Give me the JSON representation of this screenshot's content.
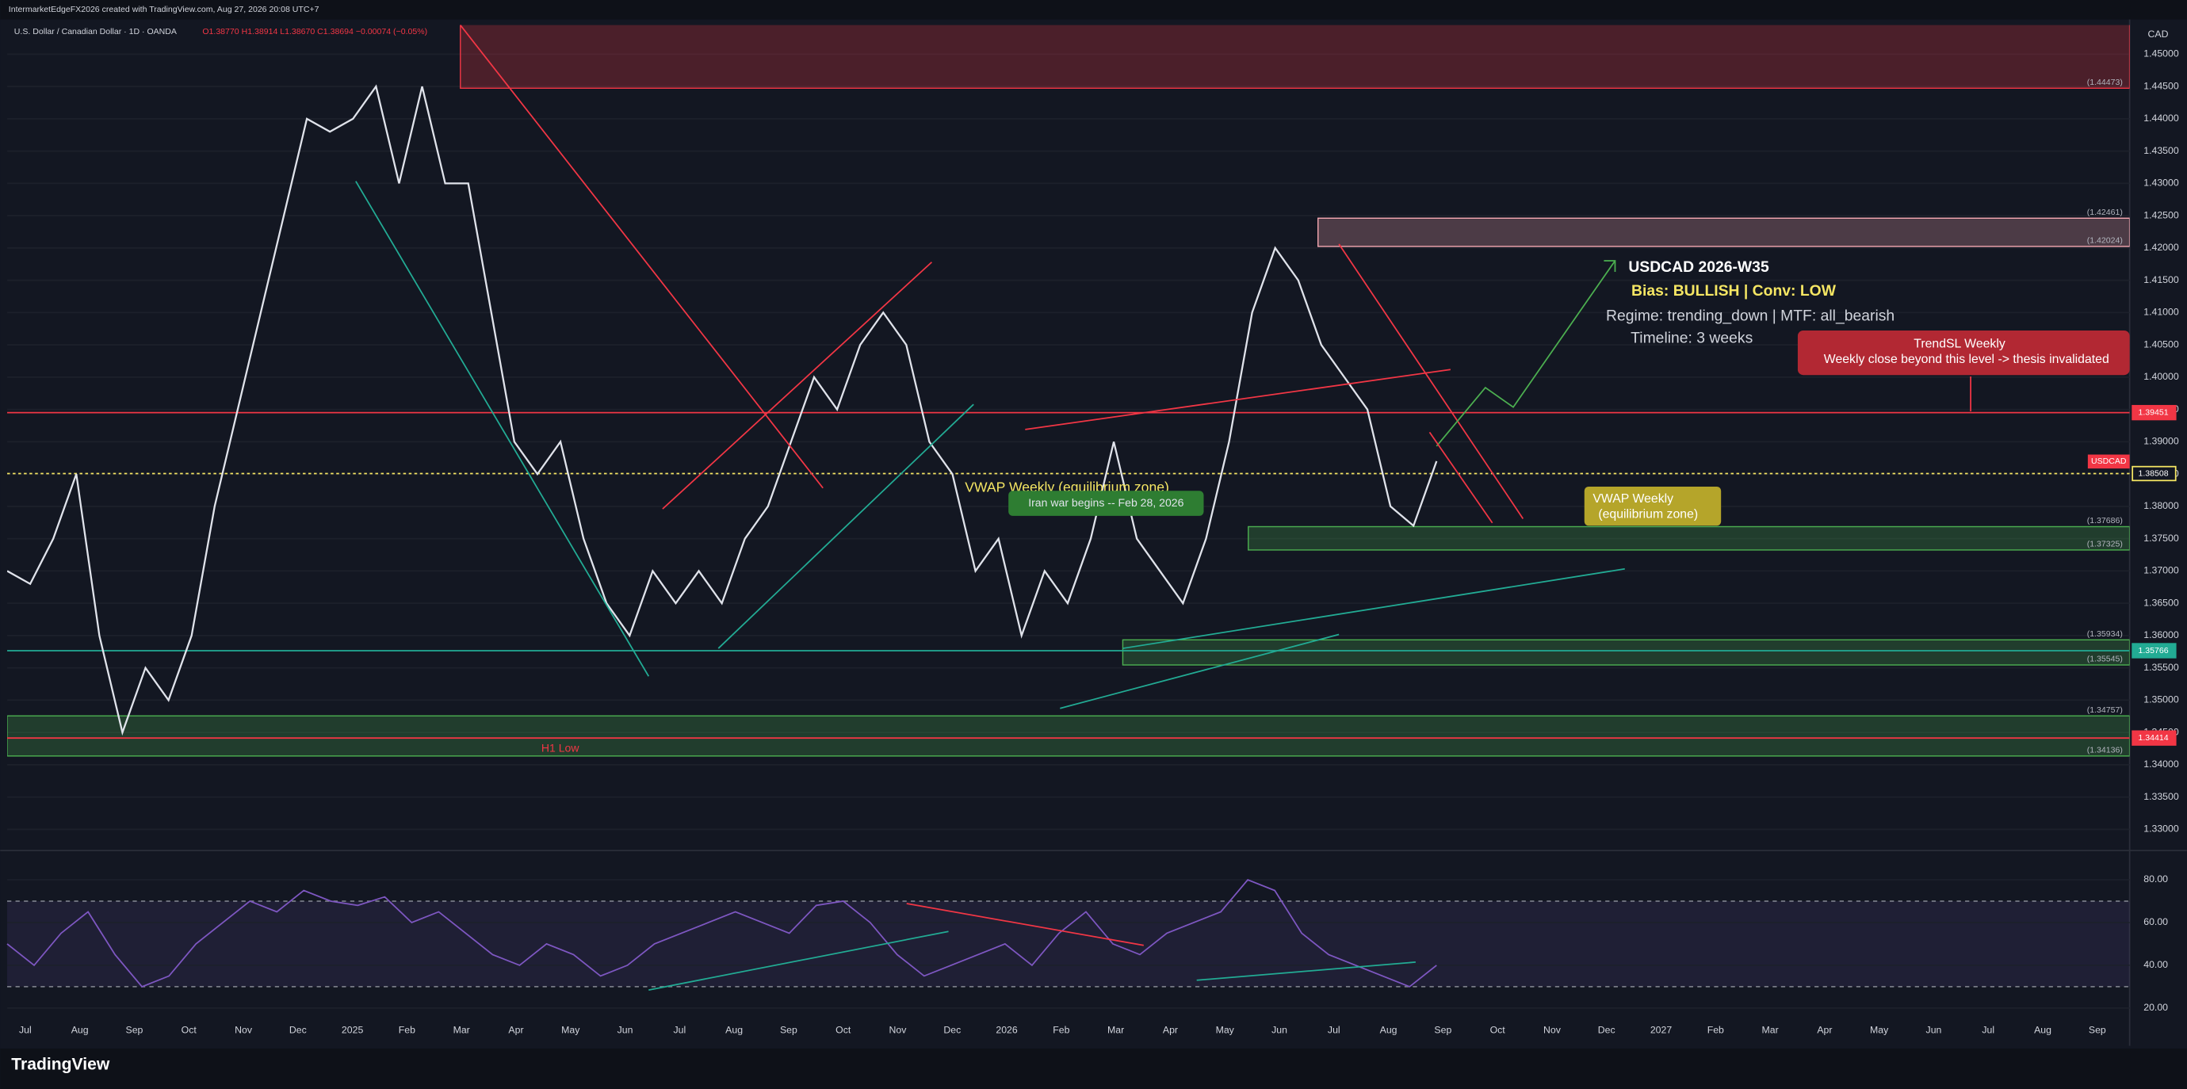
{
  "header": {
    "attribution": "IntermarketEdgeFX2026 created with TradingView.com, Aug 27, 2026 20:08 UTC+7",
    "symbol": "U.S. Dollar / Canadian Dollar · 1D · OANDA",
    "ohlc": "O1.38770 H1.38914 L1.38670 C1.38694 −0.00074 (−0.05%)"
  },
  "currency": "CAD",
  "symbol_tag": "USDCAD",
  "logo": "TradingView",
  "annotations": {
    "title": "USDCAD 2026-W35",
    "bias": "Bias: BULLISH | Conv: LOW",
    "regime": "Regime: trending_down | MTF: all_bearish",
    "timeline": "Timeline: 3 weeks",
    "sl_title": "TrendSL Weekly",
    "sl_text": "Weekly close beyond this level -> thesis invalidated",
    "vwap_text": "VWAP Weekly (equilibrium zone)",
    "event": "Iran war begins -- Feb 28, 2026",
    "vwap_box_1": "VWAP Weekly",
    "vwap_box_2": "(equilibrium zone)",
    "h1_low": "H1 Low"
  },
  "chart_data": [
    {
      "type": "line",
      "name": "USDCAD",
      "color": "#e0e3eb",
      "ylim": [
        1.3278,
        1.4545
      ],
      "yticks": [
        {
          "value": 1.33,
          "label": "1.33000"
        },
        {
          "value": 1.335,
          "label": "1.33500"
        },
        {
          "value": 1.34,
          "label": "1.34000"
        },
        {
          "value": 1.345,
          "label": "1.34500"
        },
        {
          "value": 1.35,
          "label": "1.35000"
        },
        {
          "value": 1.355,
          "label": "1.35500"
        },
        {
          "value": 1.36,
          "label": "1.36000"
        },
        {
          "value": 1.365,
          "label": "1.36500"
        },
        {
          "value": 1.37,
          "label": "1.37000"
        },
        {
          "value": 1.375,
          "label": "1.37500"
        },
        {
          "value": 1.38,
          "label": "1.38000"
        },
        {
          "value": 1.385,
          "label": "1.38500"
        },
        {
          "value": 1.39,
          "label": "1.39000"
        },
        {
          "value": 1.395,
          "label": "1.39500"
        },
        {
          "value": 1.4,
          "label": "1.40000"
        },
        {
          "value": 1.405,
          "label": "1.40500"
        },
        {
          "value": 1.41,
          "label": "1.41000"
        },
        {
          "value": 1.415,
          "label": "1.41500"
        },
        {
          "value": 1.42,
          "label": "1.42000"
        },
        {
          "value": 1.425,
          "label": "1.42500"
        },
        {
          "value": 1.43,
          "label": "1.43000"
        },
        {
          "value": 1.435,
          "label": "1.43500"
        },
        {
          "value": 1.44,
          "label": "1.44000"
        },
        {
          "value": 1.445,
          "label": "1.44500"
        },
        {
          "value": 1.45,
          "label": "1.45000"
        }
      ],
      "xtick_labels": [
        "Jul",
        "Aug",
        "Sep",
        "Oct",
        "Nov",
        "Dec",
        "2025",
        "Feb",
        "Mar",
        "Apr",
        "May",
        "Jun",
        "Jul",
        "Aug",
        "Sep",
        "Oct",
        "Nov",
        "Dec",
        "2026",
        "Feb",
        "Mar",
        "Apr",
        "May",
        "Jun",
        "Jul",
        "Aug",
        "Sep",
        "Oct",
        "Nov",
        "Dec",
        "2027",
        "Feb",
        "Mar",
        "Apr",
        "May",
        "Jun",
        "Jul",
        "Aug",
        "Sep"
      ],
      "values": [
        1.37,
        1.368,
        1.375,
        1.385,
        1.36,
        1.345,
        1.355,
        1.35,
        1.36,
        1.38,
        1.395,
        1.41,
        1.425,
        1.44,
        1.438,
        1.44,
        1.445,
        1.43,
        1.445,
        1.43,
        1.43,
        1.41,
        1.39,
        1.385,
        1.39,
        1.375,
        1.365,
        1.36,
        1.37,
        1.365,
        1.37,
        1.365,
        1.375,
        1.38,
        1.39,
        1.4,
        1.395,
        1.405,
        1.41,
        1.405,
        1.39,
        1.385,
        1.37,
        1.375,
        1.36,
        1.37,
        1.365,
        1.375,
        1.39,
        1.375,
        1.37,
        1.365,
        1.375,
        1.39,
        1.41,
        1.42,
        1.415,
        1.405,
        1.4,
        1.395,
        1.38,
        1.377,
        1.387
      ],
      "zones": [
        {
          "color": "#f23645",
          "low": {
            "value": 1.44473,
            "label": "(1.44473)"
          },
          "high": 1.4555
        },
        {
          "color": "#f7a9b3",
          "low": {
            "value": 1.42024,
            "label": "(1.42024)"
          },
          "high": {
            "value": 1.42461,
            "label": "(1.42461)"
          }
        },
        {
          "color": "#4caf50",
          "low": {
            "value": 1.37325,
            "label": "(1.37325)"
          },
          "high": {
            "value": 1.37686,
            "label": "(1.37686)"
          }
        },
        {
          "color": "#4caf50",
          "low": {
            "value": 1.35545,
            "label": "(1.35545)"
          },
          "high": {
            "value": 1.35934,
            "label": "(1.35934)"
          }
        },
        {
          "color": "#4caf50",
          "low": {
            "value": 1.34136,
            "label": "(1.34136)"
          },
          "high": {
            "value": 1.34757,
            "label": "(1.34757)"
          }
        }
      ],
      "levels": [
        {
          "value": 1.39451,
          "color": "#f23645"
        },
        {
          "value": 1.38508,
          "color": "#f5e663"
        },
        {
          "value": 1.35766,
          "color": "#22ab94"
        },
        {
          "value": 1.34414,
          "color": "#f23645"
        }
      ]
    },
    {
      "type": "line",
      "name": "RSI",
      "color": "#7e57c2",
      "ylim": [
        15.4,
        90.4
      ],
      "yticks": [
        {
          "value": 20,
          "label": "20.00"
        },
        {
          "value": 40,
          "label": "40.00"
        },
        {
          "value": 60,
          "label": "60.00"
        },
        {
          "value": 80,
          "label": "80.00"
        }
      ],
      "band": [
        30,
        70
      ],
      "values": [
        50,
        40,
        55,
        65,
        45,
        30,
        35,
        50,
        60,
        70,
        65,
        75,
        70,
        68,
        72,
        60,
        65,
        55,
        45,
        40,
        50,
        45,
        35,
        40,
        50,
        55,
        60,
        65,
        60,
        55,
        68,
        70,
        60,
        45,
        35,
        40,
        45,
        50,
        40,
        55,
        65,
        50,
        45,
        55,
        60,
        65,
        80,
        75,
        55,
        45,
        40,
        35,
        30,
        40
      ]
    }
  ]
}
